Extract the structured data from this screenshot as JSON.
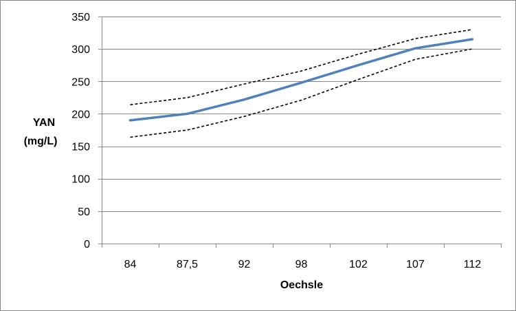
{
  "chart_data": {
    "type": "line",
    "title": "",
    "xlabel": "Oechsle",
    "ylabel_lines": [
      "YAN",
      "(mg/L)"
    ],
    "categories": [
      "84",
      "87,5",
      "92",
      "98",
      "102",
      "107",
      "112"
    ],
    "series": [
      {
        "values": [
          190,
          200,
          222,
          248,
          275,
          301,
          315
        ],
        "style": "solid",
        "color": "#4f81bd"
      },
      {
        "values": [
          214,
          225,
          246,
          266,
          292,
          316,
          330
        ],
        "style": "dashed",
        "color": "#000000"
      },
      {
        "values": [
          164,
          175,
          196,
          221,
          253,
          284,
          300
        ],
        "style": "dashed",
        "color": "#000000"
      }
    ],
    "ylim": [
      0,
      350
    ],
    "yticks": [
      0,
      50,
      100,
      150,
      200,
      250,
      300,
      350
    ],
    "grid": true,
    "legend": "none"
  }
}
